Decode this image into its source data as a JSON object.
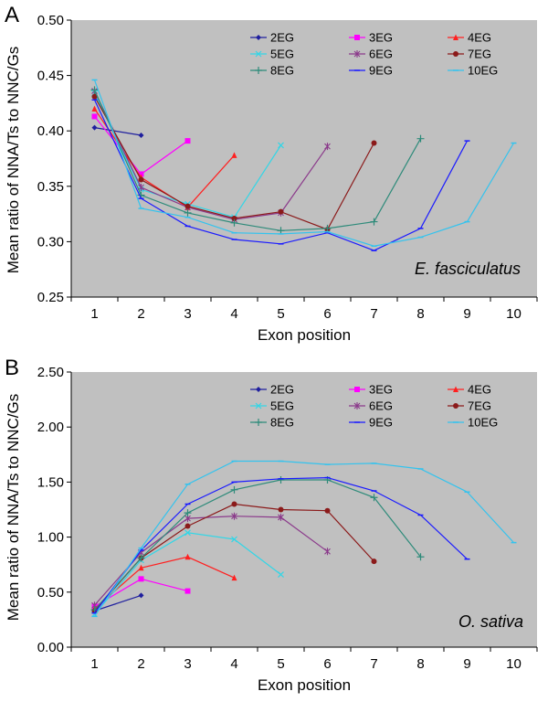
{
  "chart_data": [
    {
      "type": "line",
      "panel_label": "A",
      "species": "E. fasciculatus",
      "xlabel": "Exon position",
      "ylabel": "Mean ratio of NNA/Ts to NNC/Gs",
      "ylim": [
        0.25,
        0.5
      ],
      "yticks": [
        "0.25",
        "0.30",
        "0.35",
        "0.40",
        "0.45",
        "0.50"
      ],
      "x_categories": [
        "1",
        "2",
        "3",
        "4",
        "5",
        "6",
        "7",
        "8",
        "9",
        "10"
      ],
      "series": [
        {
          "name": "2EG",
          "color": "#1f1f9e",
          "marker": "diamond",
          "values": [
            0.403,
            0.396
          ]
        },
        {
          "name": "3EG",
          "color": "#ff00ff",
          "marker": "square",
          "values": [
            0.413,
            0.361,
            0.391
          ]
        },
        {
          "name": "4EG",
          "color": "#ff2020",
          "marker": "triangle",
          "values": [
            0.42,
            0.358,
            0.331,
            0.378
          ]
        },
        {
          "name": "5EG",
          "color": "#33d6e6",
          "marker": "x",
          "values": [
            0.434,
            0.347,
            0.334,
            0.322,
            0.387
          ]
        },
        {
          "name": "6EG",
          "color": "#8b3a8b",
          "marker": "star",
          "values": [
            0.436,
            0.349,
            0.331,
            0.32,
            0.326,
            0.386
          ]
        },
        {
          "name": "7EG",
          "color": "#8b1a1a",
          "marker": "circle",
          "values": [
            0.431,
            0.356,
            0.332,
            0.321,
            0.327,
            0.311,
            0.389
          ]
        },
        {
          "name": "8EG",
          "color": "#2e8b7a",
          "marker": "plus",
          "values": [
            0.437,
            0.342,
            0.326,
            0.317,
            0.31,
            0.312,
            0.318,
            0.393
          ]
        },
        {
          "name": "9EG",
          "color": "#1a1aff",
          "marker": "dash",
          "values": [
            0.428,
            0.339,
            0.314,
            0.302,
            0.298,
            0.308,
            0.292,
            0.312,
            0.391
          ]
        },
        {
          "name": "10EG",
          "color": "#33c3ee",
          "marker": "dash",
          "values": [
            0.446,
            0.33,
            0.322,
            0.308,
            0.307,
            0.309,
            0.296,
            0.304,
            0.318,
            0.389
          ]
        }
      ]
    },
    {
      "type": "line",
      "panel_label": "B",
      "species": "O. sativa",
      "xlabel": "Exon position",
      "ylabel": "Mean ratio of NNA/Ts to NNC/Gs",
      "ylim": [
        0.0,
        2.5
      ],
      "yticks": [
        "0.00",
        "0.50",
        "1.00",
        "1.50",
        "2.00",
        "2.50"
      ],
      "x_categories": [
        "1",
        "2",
        "3",
        "4",
        "5",
        "6",
        "7",
        "8",
        "9",
        "10"
      ],
      "series": [
        {
          "name": "2EG",
          "color": "#1f1f9e",
          "marker": "diamond",
          "values": [
            0.33,
            0.47
          ]
        },
        {
          "name": "3EG",
          "color": "#ff00ff",
          "marker": "square",
          "values": [
            0.37,
            0.62,
            0.51
          ]
        },
        {
          "name": "4EG",
          "color": "#ff2020",
          "marker": "triangle",
          "values": [
            0.35,
            0.72,
            0.82,
            0.63
          ]
        },
        {
          "name": "5EG",
          "color": "#33d6e6",
          "marker": "x",
          "values": [
            0.3,
            0.79,
            1.04,
            0.98,
            0.66
          ]
        },
        {
          "name": "6EG",
          "color": "#8b3a8b",
          "marker": "star",
          "values": [
            0.38,
            0.86,
            1.17,
            1.19,
            1.18,
            0.87
          ]
        },
        {
          "name": "7EG",
          "color": "#8b1a1a",
          "marker": "circle",
          "values": [
            0.33,
            0.81,
            1.1,
            1.3,
            1.25,
            1.24,
            0.78
          ]
        },
        {
          "name": "8EG",
          "color": "#2e8b7a",
          "marker": "plus",
          "values": [
            0.34,
            0.81,
            1.22,
            1.43,
            1.52,
            1.52,
            1.36,
            0.82
          ]
        },
        {
          "name": "9EG",
          "color": "#1a1aff",
          "marker": "dash",
          "values": [
            0.31,
            0.88,
            1.3,
            1.5,
            1.53,
            1.54,
            1.42,
            1.2,
            0.8
          ]
        },
        {
          "name": "10EG",
          "color": "#33c3ee",
          "marker": "dash",
          "values": [
            0.28,
            0.9,
            1.48,
            1.69,
            1.69,
            1.66,
            1.67,
            1.62,
            1.41,
            0.95
          ]
        }
      ]
    }
  ]
}
